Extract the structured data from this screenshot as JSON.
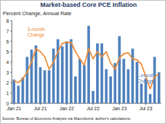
{
  "chart_data": {
    "type": "bar",
    "title": "Market-based Core PCE Inflation",
    "subtitle": "Percent Change, Annual Rate",
    "source": "Source: Bureau of Economic Analysis via Macrobond; author's calculations.",
    "categories": [
      "Jan 21",
      null,
      null,
      null,
      null,
      null,
      "Jul 21",
      null,
      null,
      null,
      null,
      null,
      "Jan 22",
      null,
      null,
      null,
      null,
      null,
      "Jul 22",
      null,
      null,
      null,
      null,
      null,
      "Jan 23",
      null,
      null,
      null,
      null,
      null,
      "Jul 23",
      null,
      null,
      null
    ],
    "series": [
      {
        "name": "1-month Change",
        "type": "bar",
        "color": "#4f81bd",
        "values": [
          2.3,
          1.7,
          2.5,
          4.5,
          5.2,
          5.6,
          3.5,
          3.2,
          3.2,
          5.3,
          6.2,
          5.5,
          6.0,
          6.2,
          2.6,
          4.3,
          3.7,
          7.5,
          1.2,
          5.8,
          5.8,
          3.3,
          2.6,
          3.9,
          6.5,
          4.3,
          3.3,
          5.3,
          4.0,
          1.9,
          2.4,
          0.9,
          4.5,
          3.0
        ]
      },
      {
        "name": "3-month Change",
        "type": "line",
        "color": "#ed8a35",
        "values": [
          2.2,
          2.0,
          2.4,
          3.0,
          4.0,
          5.3,
          5.0,
          4.5,
          3.3,
          4.0,
          5.0,
          5.8,
          5.9,
          5.9,
          5.0,
          4.3,
          3.7,
          5.3,
          4.3,
          5.0,
          4.5,
          5.0,
          3.9,
          3.3,
          4.4,
          4.8,
          4.9,
          4.3,
          4.2,
          3.8,
          2.6,
          1.4,
          2.6,
          2.8
        ]
      }
    ],
    "annotations": [
      {
        "lines": [
          "3-month",
          "Change"
        ],
        "color": "#ed8a35"
      },
      {
        "lines": [
          "1-month",
          "Change"
        ],
        "color": "#4f81bd"
      }
    ],
    "ylim": [
      0,
      8
    ],
    "yticks": [
      0,
      1,
      2,
      3,
      4,
      5,
      6,
      7,
      8
    ],
    "grid": false
  }
}
